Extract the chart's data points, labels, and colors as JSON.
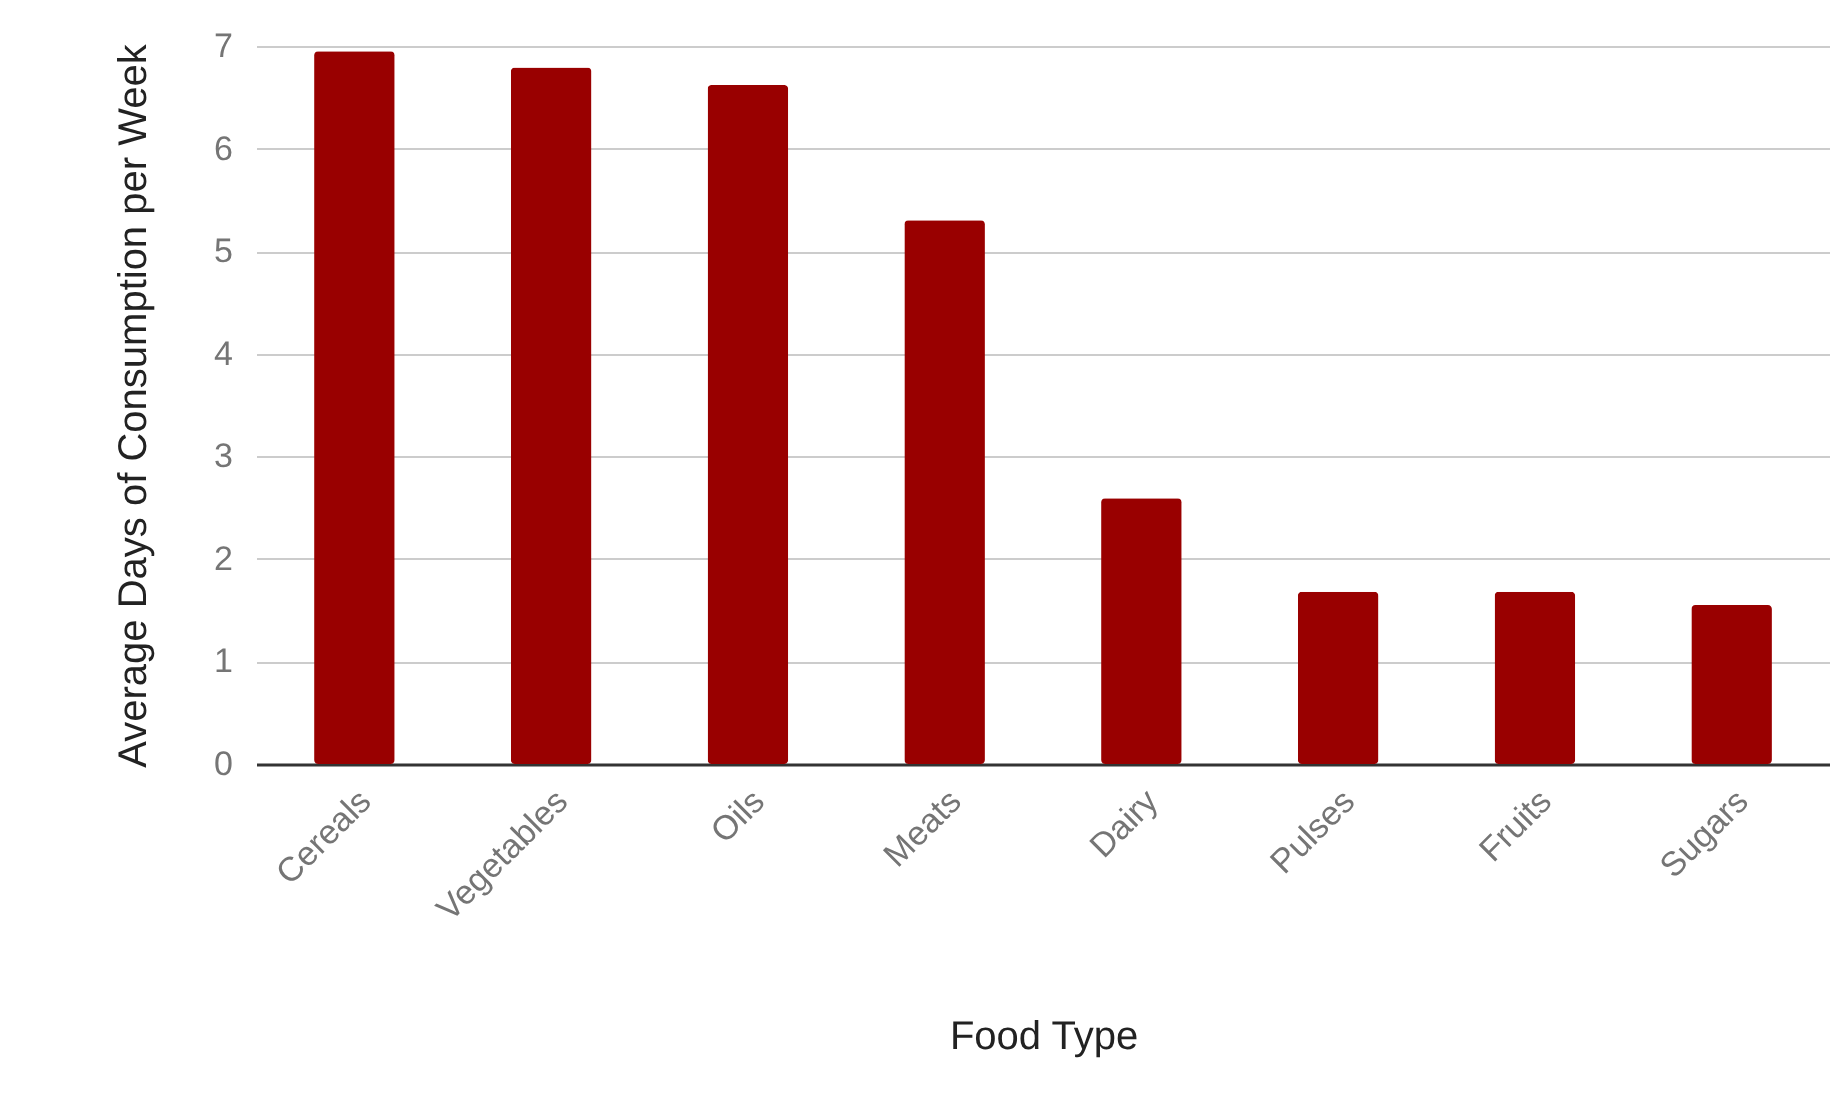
{
  "chart_data": {
    "type": "bar",
    "xlabel": "Food Type",
    "ylabel": "Average Days of Consumption per Week",
    "categories": [
      "Cereals",
      "Vegetables",
      "Oils",
      "Meats",
      "Dairy",
      "Pulses",
      "Fruits",
      "Sugars"
    ],
    "values": [
      6.95,
      6.79,
      6.62,
      5.3,
      2.59,
      1.68,
      1.68,
      1.55
    ],
    "color": "#990000",
    "ylim": [
      0,
      7
    ],
    "yticks": [
      0,
      1,
      2,
      3,
      4,
      5,
      6,
      7
    ],
    "grid": true
  }
}
